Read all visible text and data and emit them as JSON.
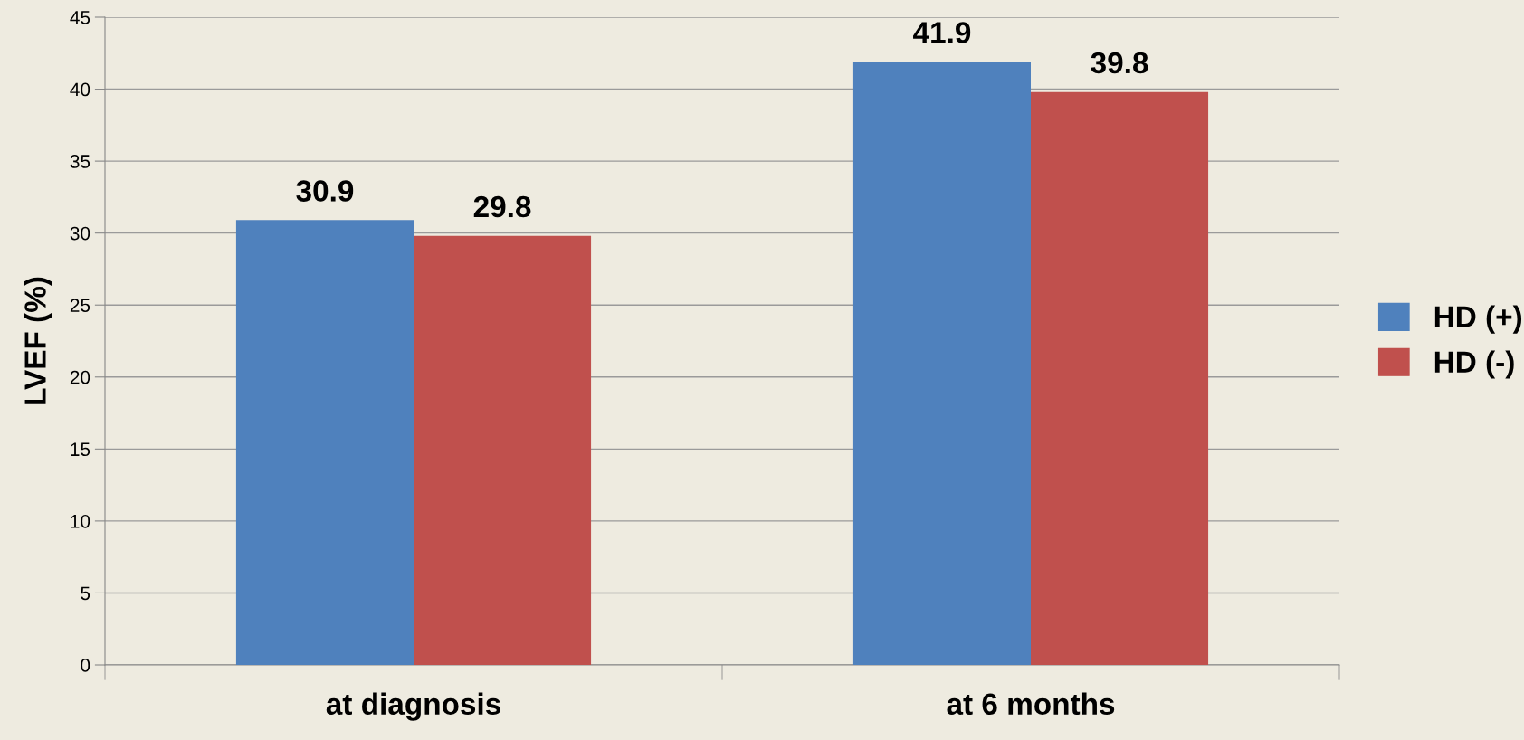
{
  "chart_data": {
    "type": "bar",
    "ylabel": "LVEF (%)",
    "categories": [
      "at diagnosis",
      "at 6 months"
    ],
    "series": [
      {
        "name": "HD (+)",
        "color": "#4f81bd",
        "values": [
          30.9,
          41.9
        ]
      },
      {
        "name": "HD (-)",
        "color": "#c0504d",
        "values": [
          29.8,
          39.8
        ]
      }
    ],
    "ylim": [
      0,
      45
    ],
    "yticks": [
      0,
      5,
      10,
      15,
      20,
      25,
      30,
      35,
      40,
      45
    ],
    "grid": "y",
    "legend": "right",
    "data_labels": true
  }
}
